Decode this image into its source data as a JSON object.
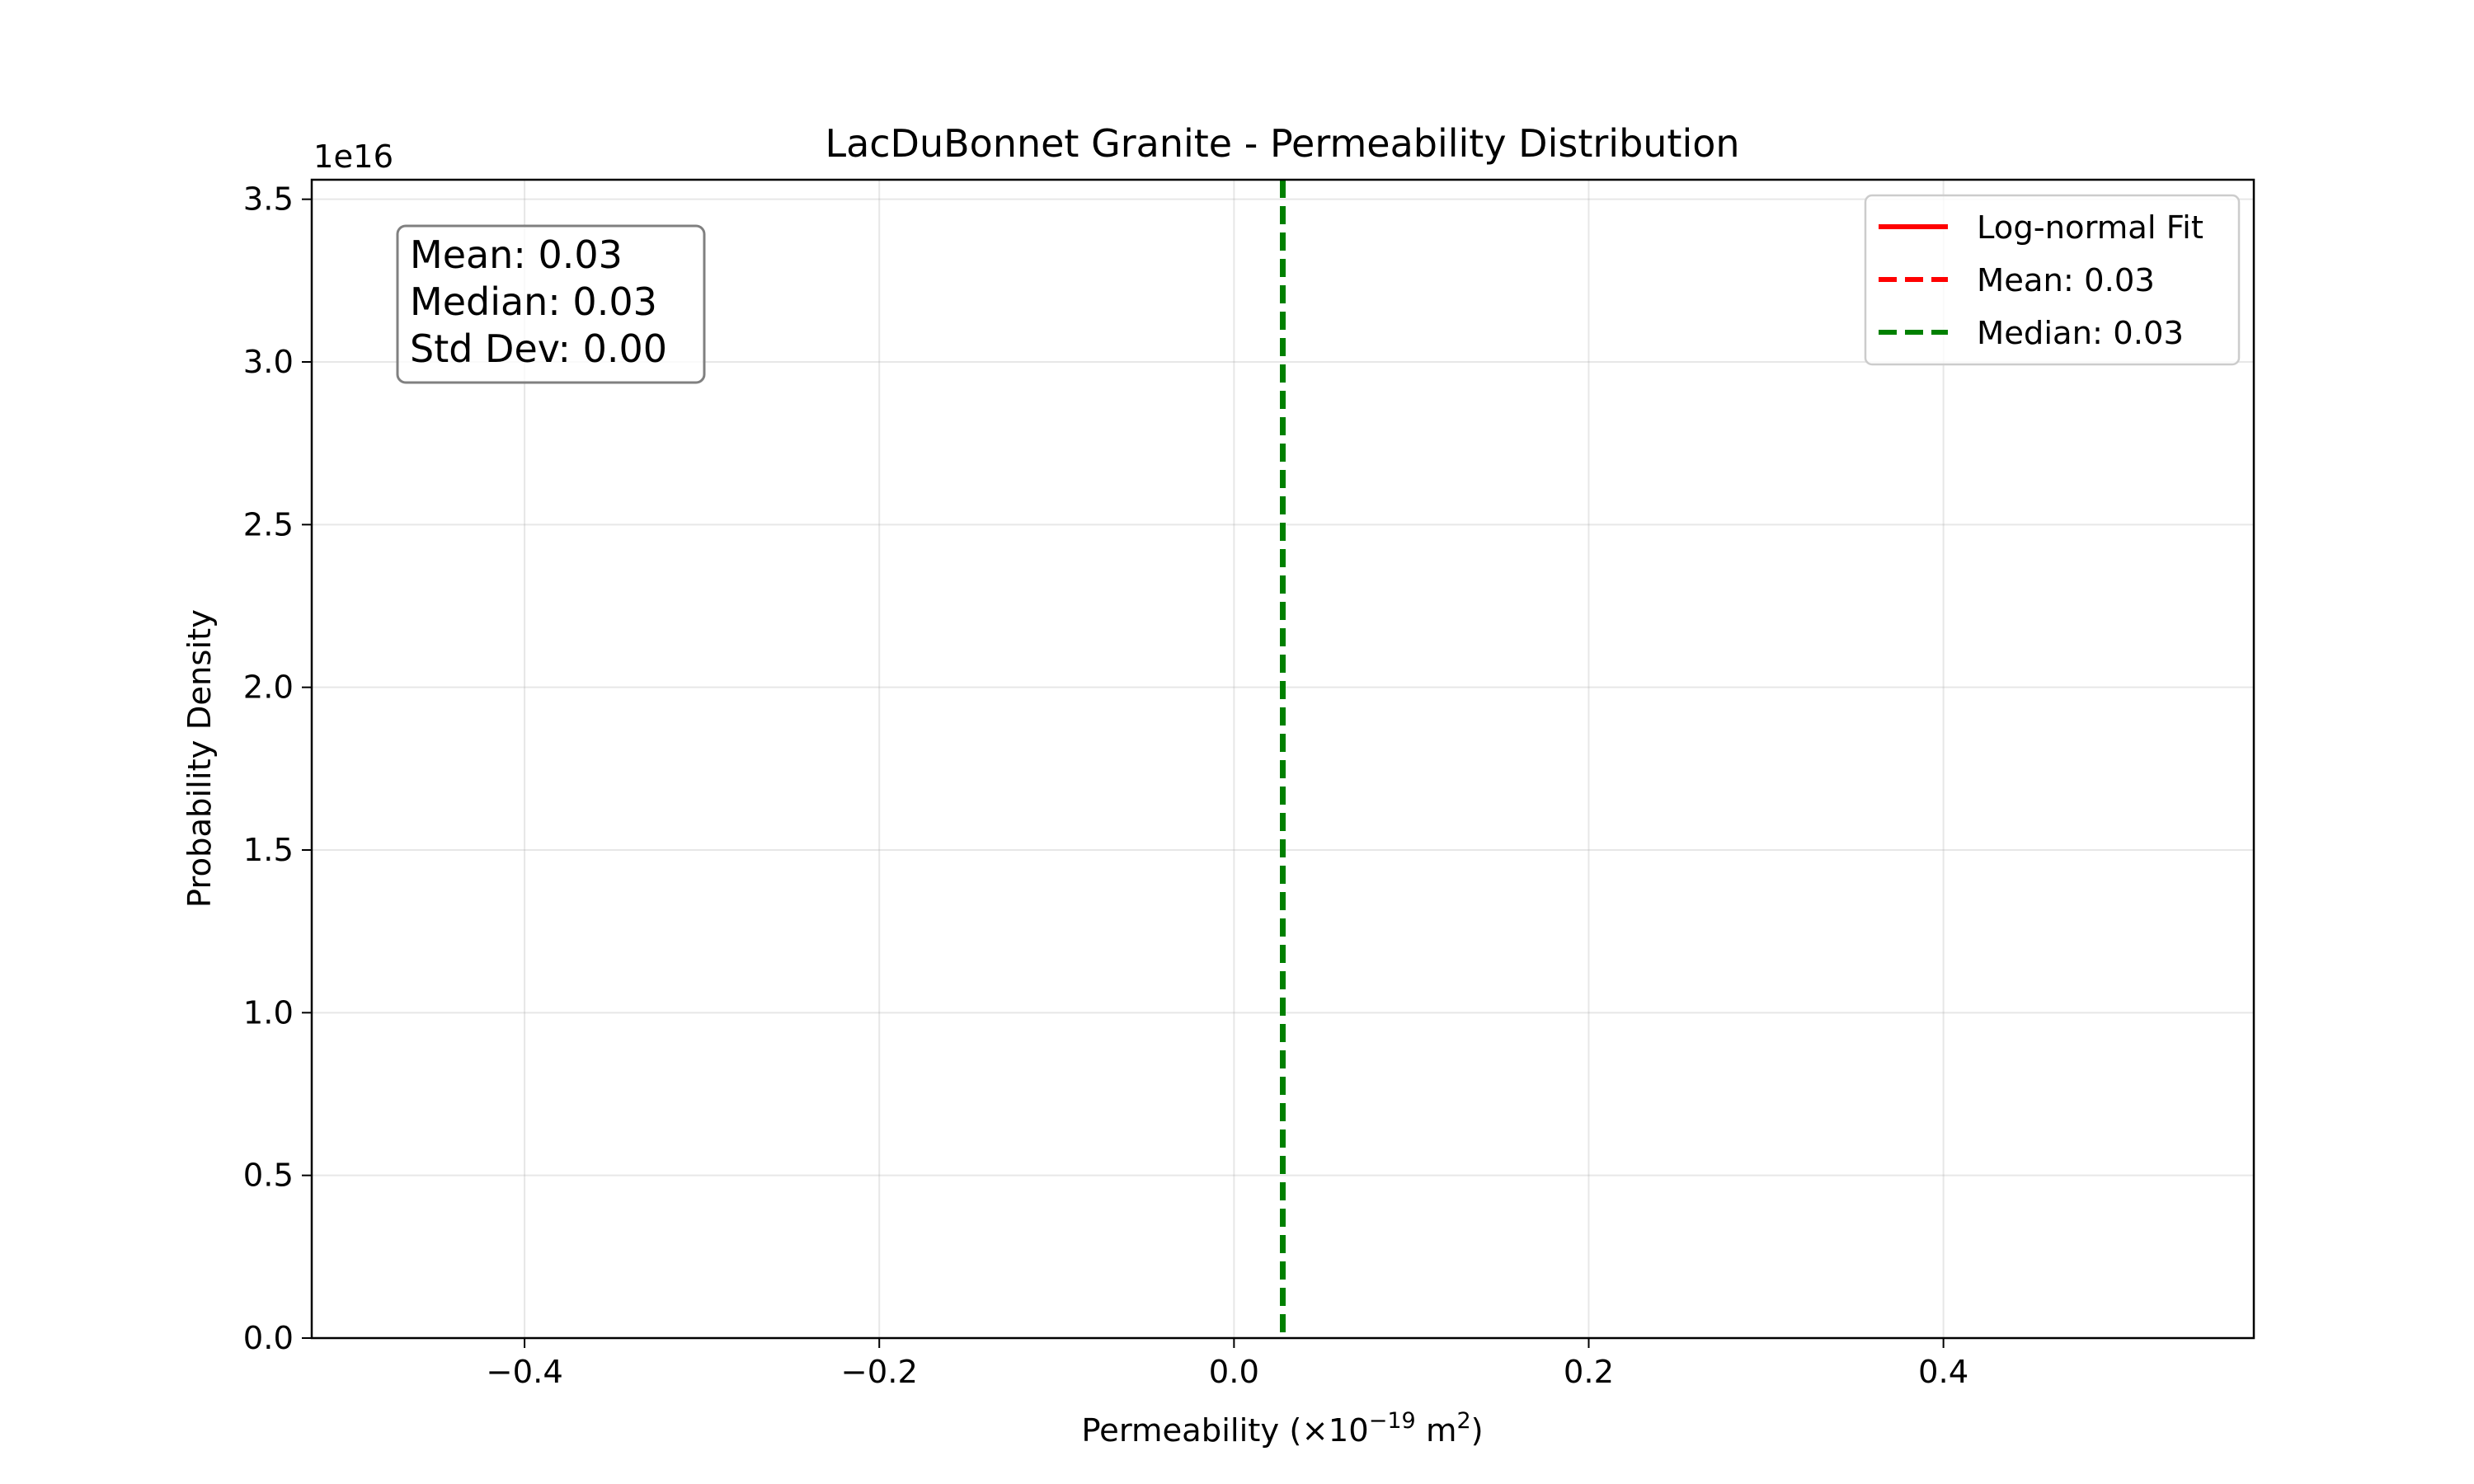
{
  "chart_data": {
    "type": "line",
    "title": "LacDuBonnet Granite - Permeability Distribution",
    "xlabel": "Permeability (×10",
    "xlabel_exponent": "−19",
    "xlabel_unit": "m",
    "xlabel_unit_exponent": "2",
    "ylabel": "Probability Density",
    "y_offset_label": "1e16",
    "xlim": [
      -0.52,
      0.575
    ],
    "ylim": [
      0,
      3.56
    ],
    "grid": true,
    "x_ticks": [
      {
        "value": -0.4,
        "label": "−0.4"
      },
      {
        "value": -0.2,
        "label": "−0.2"
      },
      {
        "value": 0.0,
        "label": "0.0"
      },
      {
        "value": 0.2,
        "label": "0.2"
      },
      {
        "value": 0.4,
        "label": "0.4"
      }
    ],
    "y_ticks": [
      {
        "value": 0.0,
        "label": "0.0"
      },
      {
        "value": 0.5,
        "label": "0.5"
      },
      {
        "value": 1.0,
        "label": "1.0"
      },
      {
        "value": 1.5,
        "label": "1.5"
      },
      {
        "value": 2.0,
        "label": "2.0"
      },
      {
        "value": 2.5,
        "label": "2.5"
      },
      {
        "value": 3.0,
        "label": "3.0"
      },
      {
        "value": 3.5,
        "label": "3.5"
      }
    ],
    "series": [
      {
        "name": "Log-normal Fit",
        "kind": "line",
        "color": "#ff0000",
        "style": "solid",
        "x": [],
        "y": []
      },
      {
        "name": "Mean: 0.03",
        "kind": "vline",
        "color": "#ff0000",
        "style": "dashed",
        "x": 0.0275
      },
      {
        "name": "Median: 0.03",
        "kind": "vline",
        "color": "#008000",
        "style": "dashed",
        "x": 0.0275
      }
    ],
    "stats_box": [
      "Mean: 0.03",
      "Median: 0.03",
      "Std Dev: 0.00"
    ],
    "legend_position": "top-right",
    "stats_position": "top-left"
  }
}
